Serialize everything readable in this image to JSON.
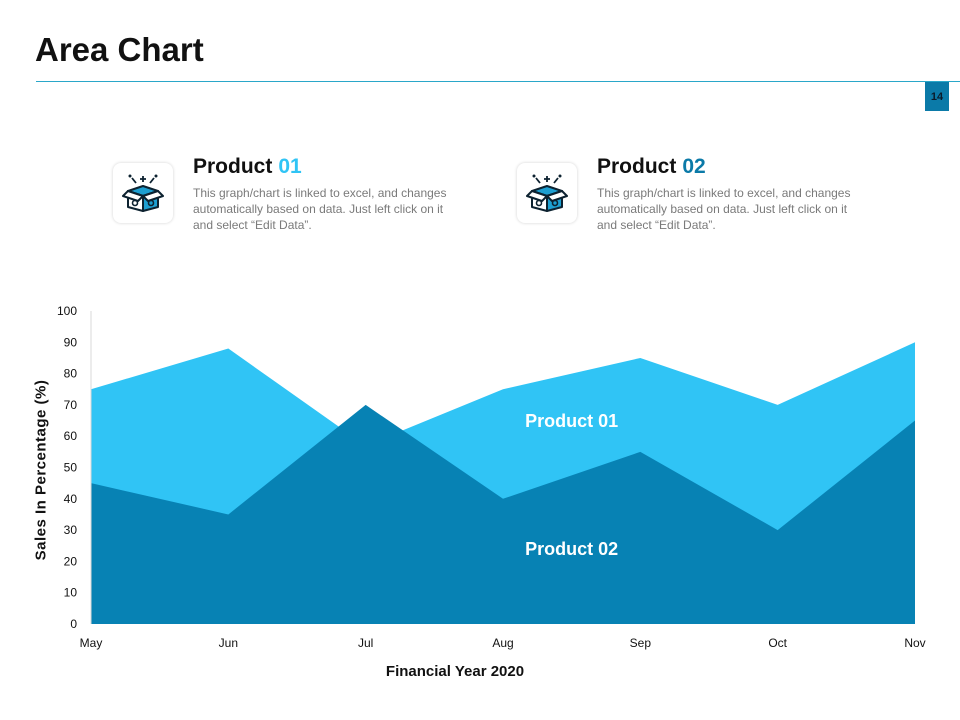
{
  "page": {
    "title": "Area Chart",
    "page_number": "14",
    "colors": {
      "accent": "#2aa7c9",
      "product01": "#30c4f5",
      "product02": "#0782b4",
      "page_badge": "#0b7aa8"
    }
  },
  "products": [
    {
      "label": "Product",
      "number": "01",
      "number_color": "#30c4f5",
      "icon": "open-box-icon",
      "description": "This graph/chart is linked to excel, and changes automatically based on data. Just left click on it and select “Edit Data”."
    },
    {
      "label": "Product",
      "number": "02",
      "number_color": "#0b7aa8",
      "icon": "open-box-icon",
      "description": "This graph/chart is linked to excel, and changes automatically based on data. Just left click on it and select “Edit Data”."
    }
  ],
  "chart_data": {
    "type": "area",
    "title": "",
    "xlabel": "Financial  Year 2020",
    "ylabel": "Sales In Percentage (%)",
    "categories": [
      "May",
      "Jun",
      "Jul",
      "Aug",
      "Sep",
      "Oct",
      "Nov"
    ],
    "ylim": [
      0,
      100
    ],
    "yticks": [
      0,
      10,
      20,
      30,
      40,
      50,
      60,
      70,
      80,
      90,
      100
    ],
    "grid": false,
    "series": [
      {
        "name": "Product 01",
        "color": "#30c4f5",
        "values": [
          75,
          88,
          57,
          75,
          85,
          70,
          90
        ]
      },
      {
        "name": "Product 02",
        "color": "#0782b4",
        "values": [
          45,
          35,
          70,
          40,
          55,
          30,
          65
        ]
      }
    ],
    "annotations": [
      {
        "text": "Product 01",
        "series": "Product 01"
      },
      {
        "text": "Product 02",
        "series": "Product 02"
      }
    ]
  }
}
